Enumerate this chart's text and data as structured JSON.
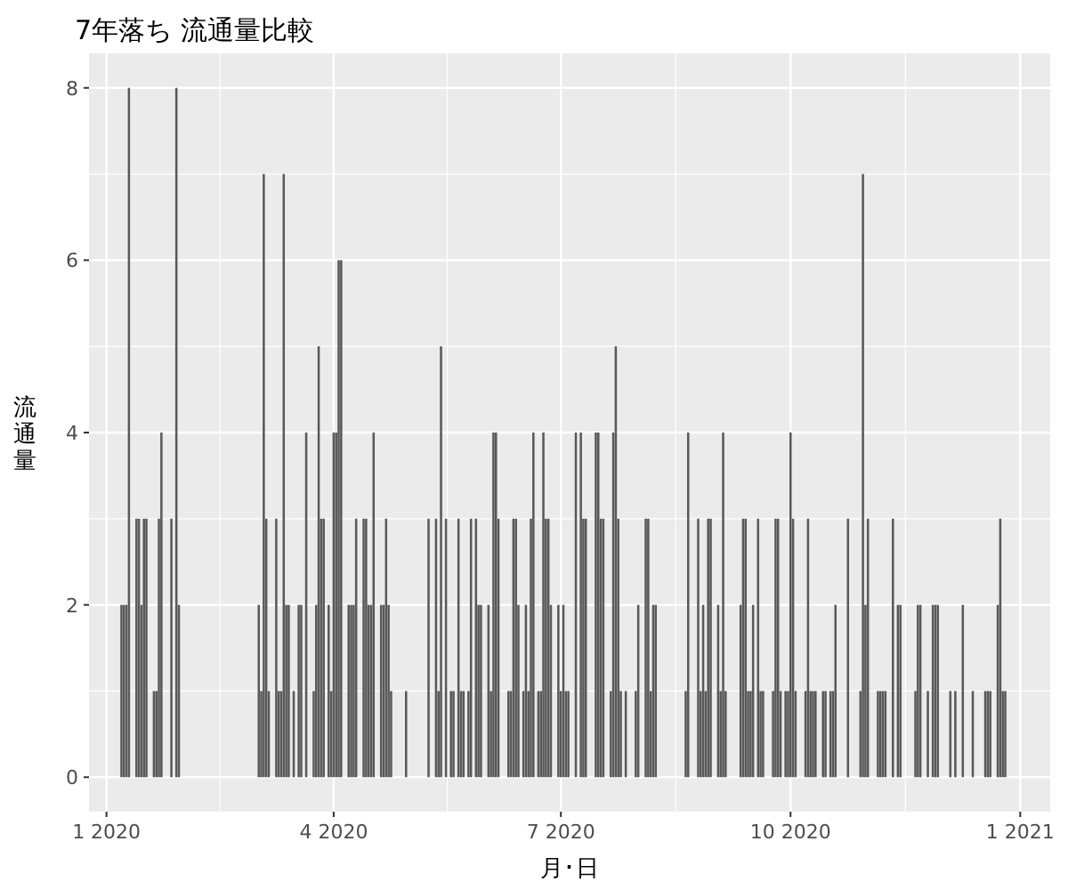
{
  "chart_data": {
    "type": "bar",
    "title": "7年落ち 流通量比較",
    "xlabel": "月･日",
    "ylabel": "流通量",
    "color": "#595959",
    "grid": true,
    "xlim": [
      "2019-12-25",
      "2021-01-13"
    ],
    "ylim": [
      -0.4,
      8.4
    ],
    "xticks": [
      {
        "value": "2020-01-01",
        "label": "1 2020"
      },
      {
        "value": "2020-04-01",
        "label": "4 2020"
      },
      {
        "value": "2020-07-01",
        "label": "7 2020"
      },
      {
        "value": "2020-10-01",
        "label": "10 2020"
      },
      {
        "value": "2021-01-01",
        "label": "1 2021"
      }
    ],
    "yticks": [
      0,
      2,
      4,
      6,
      8
    ],
    "x": [
      "2020-01-07",
      "2020-01-08",
      "2020-01-09",
      "2020-01-10",
      "2020-01-13",
      "2020-01-14",
      "2020-01-15",
      "2020-01-16",
      "2020-01-17",
      "2020-01-20",
      "2020-01-21",
      "2020-01-22",
      "2020-01-23",
      "2020-01-27",
      "2020-01-29",
      "2020-01-30",
      "2020-03-02",
      "2020-03-03",
      "2020-03-04",
      "2020-03-05",
      "2020-03-06",
      "2020-03-09",
      "2020-03-10",
      "2020-03-11",
      "2020-03-12",
      "2020-03-13",
      "2020-03-14",
      "2020-03-16",
      "2020-03-18",
      "2020-03-19",
      "2020-03-21",
      "2020-03-24",
      "2020-03-25",
      "2020-03-26",
      "2020-03-27",
      "2020-03-28",
      "2020-03-30",
      "2020-03-31",
      "2020-04-01",
      "2020-04-02",
      "2020-04-03",
      "2020-04-04",
      "2020-04-07",
      "2020-04-08",
      "2020-04-09",
      "2020-04-10",
      "2020-04-13",
      "2020-04-14",
      "2020-04-15",
      "2020-04-16",
      "2020-04-17",
      "2020-04-20",
      "2020-04-21",
      "2020-04-22",
      "2020-04-23",
      "2020-04-24",
      "2020-04-30",
      "2020-05-09",
      "2020-05-12",
      "2020-05-13",
      "2020-05-14",
      "2020-05-16",
      "2020-05-18",
      "2020-05-19",
      "2020-05-21",
      "2020-05-22",
      "2020-05-23",
      "2020-05-25",
      "2020-05-26",
      "2020-05-28",
      "2020-05-29",
      "2020-05-30",
      "2020-06-02",
      "2020-06-03",
      "2020-06-04",
      "2020-06-05",
      "2020-06-06",
      "2020-06-10",
      "2020-06-11",
      "2020-06-12",
      "2020-06-13",
      "2020-06-14",
      "2020-06-16",
      "2020-06-17",
      "2020-06-18",
      "2020-06-19",
      "2020-06-20",
      "2020-06-22",
      "2020-06-23",
      "2020-06-24",
      "2020-06-25",
      "2020-06-26",
      "2020-06-27",
      "2020-06-30",
      "2020-07-01",
      "2020-07-02",
      "2020-07-03",
      "2020-07-04",
      "2020-07-07",
      "2020-07-09",
      "2020-07-10",
      "2020-07-11",
      "2020-07-15",
      "2020-07-16",
      "2020-07-17",
      "2020-07-18",
      "2020-07-21",
      "2020-07-22",
      "2020-07-23",
      "2020-07-24",
      "2020-07-25",
      "2020-07-27",
      "2020-07-31",
      "2020-08-01",
      "2020-08-04",
      "2020-08-05",
      "2020-08-06",
      "2020-08-07",
      "2020-08-08",
      "2020-08-20",
      "2020-08-21",
      "2020-08-25",
      "2020-08-26",
      "2020-08-27",
      "2020-08-28",
      "2020-08-29",
      "2020-08-30",
      "2020-09-02",
      "2020-09-03",
      "2020-09-04",
      "2020-09-05",
      "2020-09-11",
      "2020-09-12",
      "2020-09-13",
      "2020-09-14",
      "2020-09-15",
      "2020-09-16",
      "2020-09-18",
      "2020-09-19",
      "2020-09-20",
      "2020-09-24",
      "2020-09-25",
      "2020-09-26",
      "2020-09-27",
      "2020-09-29",
      "2020-09-30",
      "2020-10-01",
      "2020-10-02",
      "2020-10-03",
      "2020-10-07",
      "2020-10-08",
      "2020-10-09",
      "2020-10-10",
      "2020-10-11",
      "2020-10-14",
      "2020-10-15",
      "2020-10-17",
      "2020-10-18",
      "2020-10-19",
      "2020-10-24",
      "2020-10-29",
      "2020-10-30",
      "2020-10-31",
      "2020-11-01",
      "2020-11-05",
      "2020-11-06",
      "2020-11-07",
      "2020-11-08",
      "2020-11-11",
      "2020-11-13",
      "2020-11-14",
      "2020-11-20",
      "2020-11-21",
      "2020-11-22",
      "2020-11-25",
      "2020-11-27",
      "2020-11-28",
      "2020-11-29",
      "2020-12-04",
      "2020-12-06",
      "2020-12-09",
      "2020-12-13",
      "2020-12-18",
      "2020-12-19",
      "2020-12-20",
      "2020-12-23",
      "2020-12-24",
      "2020-12-25",
      "2020-12-26"
    ],
    "values": [
      2,
      2,
      2,
      8,
      3,
      3,
      2,
      3,
      3,
      1,
      1,
      3,
      4,
      3,
      8,
      2,
      2,
      1,
      7,
      3,
      1,
      3,
      1,
      1,
      7,
      2,
      2,
      1,
      2,
      2,
      4,
      1,
      2,
      5,
      3,
      3,
      2,
      1,
      4,
      4,
      6,
      6,
      2,
      2,
      2,
      3,
      3,
      3,
      2,
      2,
      4,
      2,
      2,
      3,
      2,
      1,
      1,
      3,
      3,
      1,
      5,
      3,
      1,
      1,
      3,
      1,
      1,
      1,
      3,
      3,
      2,
      2,
      2,
      1,
      4,
      4,
      3,
      1,
      1,
      3,
      3,
      2,
      1,
      2,
      1,
      3,
      4,
      1,
      1,
      4,
      3,
      3,
      2,
      2,
      1,
      2,
      1,
      1,
      4,
      4,
      3,
      3,
      4,
      4,
      3,
      3,
      1,
      4,
      5,
      3,
      1,
      1,
      1,
      2,
      3,
      3,
      1,
      2,
      2,
      1,
      4,
      3,
      1,
      2,
      1,
      3,
      3,
      2,
      1,
      4,
      1,
      2,
      3,
      3,
      1,
      1,
      2,
      3,
      1,
      1,
      1,
      3,
      3,
      1,
      1,
      1,
      4,
      3,
      1,
      1,
      3,
      1,
      1,
      1,
      1,
      1,
      1,
      1,
      2,
      3,
      1,
      7,
      2,
      3,
      1,
      1,
      1,
      1,
      3,
      2,
      2,
      1,
      2,
      2,
      1,
      2,
      2,
      2,
      1,
      1,
      2,
      1,
      1,
      1,
      1,
      2,
      3,
      1,
      1
    ]
  }
}
